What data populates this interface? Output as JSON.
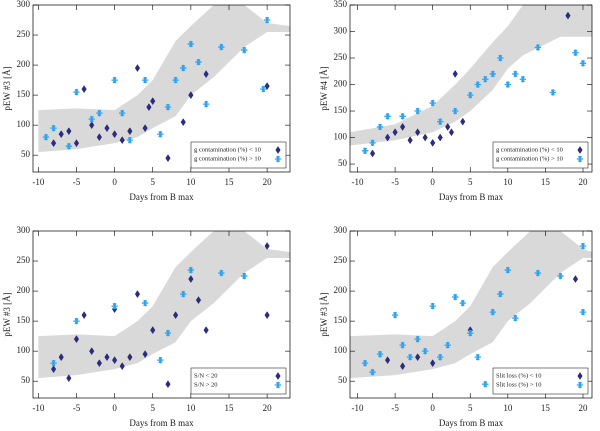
{
  "chart_data": [
    {
      "type": "scatter",
      "xlabel": "Days from B max",
      "ylabel": "pEW #3 [Å]",
      "xlim": [
        -10.7,
        23
      ],
      "ylim": [
        22,
        300
      ],
      "xticks": [
        -10,
        -5,
        0,
        5,
        10,
        15,
        20
      ],
      "yticks": [
        50,
        100,
        150,
        200,
        250,
        300
      ],
      "legend": "lower right",
      "band_color": "#d9d9d9",
      "band": {
        "x": [
          -10,
          -5,
          0,
          3,
          5,
          8,
          10,
          13,
          17,
          20,
          23
        ],
        "upper": [
          125,
          128,
          125,
          150,
          175,
          240,
          265,
          300,
          300,
          270,
          265
        ],
        "lower": [
          55,
          60,
          70,
          80,
          95,
          115,
          150,
          180,
          230,
          255,
          255
        ]
      },
      "series": [
        {
          "name": "g contamination (%) < 10",
          "color": "#2b2b8c",
          "marker": "diamond",
          "x": [
            -8,
            -7,
            -6,
            -5,
            -4,
            -3,
            -2,
            -1,
            0,
            1,
            2,
            3,
            4,
            4.5,
            5,
            7,
            9,
            10,
            12,
            20
          ],
          "values": [
            70,
            85,
            90,
            70,
            160,
            100,
            80,
            95,
            85,
            75,
            90,
            195,
            95,
            130,
            140,
            45,
            105,
            150,
            185,
            165
          ]
        },
        {
          "name": "g contamination (%) > 10",
          "color": "#2ea3f2",
          "marker": "asterisk",
          "x": [
            -9,
            -8,
            -6,
            -5,
            -3,
            -2,
            0,
            1,
            2,
            4,
            6,
            7,
            8,
            9,
            10,
            11,
            12,
            14,
            17,
            19.5,
            20
          ],
          "values": [
            80,
            95,
            65,
            155,
            110,
            120,
            175,
            120,
            75,
            175,
            85,
            130,
            175,
            195,
            235,
            205,
            135,
            230,
            225,
            160,
            275
          ]
        }
      ]
    },
    {
      "type": "scatter",
      "xlabel": "Days from B max",
      "ylabel": "pEW #4 [Å]",
      "xlim": [
        -11,
        21.2
      ],
      "ylim": [
        35,
        350
      ],
      "xticks": [
        -10,
        -5,
        0,
        5,
        10,
        15,
        20
      ],
      "yticks": [
        50,
        100,
        150,
        200,
        250,
        300,
        350
      ],
      "legend": "lower right",
      "band_color": "#d9d9d9",
      "band": {
        "x": [
          -11,
          -5,
          0,
          3,
          5,
          8,
          10,
          12,
          17,
          20,
          21.2
        ],
        "upper": [
          110,
          125,
          160,
          200,
          230,
          280,
          310,
          350,
          350,
          350,
          350
        ],
        "lower": [
          85,
          95,
          110,
          130,
          150,
          190,
          230,
          255,
          290,
          290,
          290
        ]
      },
      "series": [
        {
          "name": "g contamination (%) < 10",
          "color": "#2b2b8c",
          "marker": "diamond",
          "x": [
            -8,
            -6,
            -5,
            -4,
            -3,
            -2,
            -1,
            0,
            1,
            2,
            2.5,
            3,
            4,
            18
          ],
          "values": [
            70,
            100,
            110,
            120,
            95,
            110,
            100,
            90,
            100,
            120,
            110,
            220,
            130,
            330
          ]
        },
        {
          "name": "g contamination (%) > 10",
          "color": "#2ea3f2",
          "marker": "asterisk",
          "x": [
            -9,
            -8,
            -7,
            -6,
            -4,
            -2,
            0,
            1,
            3,
            5,
            6,
            7,
            8,
            9,
            10,
            11,
            12,
            14,
            16,
            19,
            20
          ],
          "values": [
            75,
            90,
            120,
            140,
            140,
            150,
            165,
            130,
            150,
            180,
            200,
            210,
            220,
            250,
            200,
            220,
            210,
            270,
            185,
            260,
            240
          ]
        }
      ]
    },
    {
      "type": "scatter",
      "xlabel": "Days from B max",
      "ylabel": "pEW #3 [Å]",
      "xlim": [
        -10.7,
        23
      ],
      "ylim": [
        22,
        300
      ],
      "xticks": [
        -10,
        -5,
        0,
        5,
        10,
        15,
        20
      ],
      "yticks": [
        50,
        100,
        150,
        200,
        250,
        300
      ],
      "legend": "lower right",
      "band_color": "#d9d9d9",
      "band": {
        "x": [
          -10,
          -5,
          0,
          3,
          5,
          8,
          10,
          13,
          17,
          20,
          23
        ],
        "upper": [
          125,
          128,
          125,
          150,
          175,
          240,
          265,
          300,
          300,
          270,
          265
        ],
        "lower": [
          55,
          60,
          70,
          80,
          95,
          115,
          150,
          180,
          230,
          255,
          255
        ]
      },
      "series": [
        {
          "name": "S/N < 20",
          "color": "#2b2b8c",
          "marker": "diamond",
          "x": [
            -8,
            -7,
            -6,
            -5,
            -4,
            -3,
            -2,
            -1,
            0,
            0,
            1,
            2,
            3,
            4,
            5,
            7,
            8,
            10,
            11,
            12,
            20,
            20
          ],
          "values": [
            70,
            90,
            55,
            120,
            160,
            100,
            80,
            90,
            85,
            170,
            75,
            90,
            195,
            95,
            135,
            45,
            160,
            220,
            185,
            135,
            160,
            275
          ]
        },
        {
          "name": "S/N > 20",
          "color": "#2ea3f2",
          "marker": "asterisk",
          "x": [
            -8,
            -5,
            0,
            4,
            6,
            7,
            9,
            10,
            14,
            17
          ],
          "values": [
            80,
            150,
            175,
            180,
            85,
            130,
            195,
            235,
            230,
            225
          ]
        }
      ]
    },
    {
      "type": "scatter",
      "xlabel": "Days from B max",
      "ylabel": "pEW #3 [Å]",
      "xlim": [
        -11,
        21.2
      ],
      "ylim": [
        22,
        300
      ],
      "xticks": [
        -10,
        -5,
        0,
        5,
        10,
        15,
        20
      ],
      "yticks": [
        50,
        100,
        150,
        200,
        250,
        300
      ],
      "legend": "lower right",
      "band_color": "#d9d9d9",
      "band": {
        "x": [
          -11,
          -5,
          0,
          3,
          5,
          8,
          10,
          13,
          17,
          20,
          21.2
        ],
        "upper": [
          125,
          128,
          125,
          150,
          175,
          240,
          265,
          300,
          300,
          270,
          265
        ],
        "lower": [
          55,
          60,
          70,
          80,
          95,
          115,
          150,
          180,
          230,
          255,
          255
        ]
      },
      "series": [
        {
          "name": "Slit loss (%) < 10",
          "color": "#2b2b8c",
          "marker": "diamond",
          "x": [
            -6,
            -4,
            -2,
            0,
            5,
            19
          ],
          "values": [
            85,
            75,
            90,
            80,
            135,
            220
          ]
        },
        {
          "name": "Slit loss (%) > 10",
          "color": "#2ea3f2",
          "marker": "asterisk",
          "x": [
            -9,
            -8,
            -7,
            -5,
            -4,
            -3,
            -2,
            -1,
            0,
            1,
            2,
            3,
            4,
            5,
            6,
            7,
            8,
            9,
            10,
            11,
            14,
            17,
            20,
            20
          ],
          "values": [
            80,
            65,
            95,
            160,
            110,
            90,
            120,
            100,
            175,
            90,
            110,
            190,
            180,
            130,
            90,
            45,
            165,
            195,
            235,
            155,
            230,
            225,
            165,
            275
          ]
        }
      ]
    }
  ]
}
